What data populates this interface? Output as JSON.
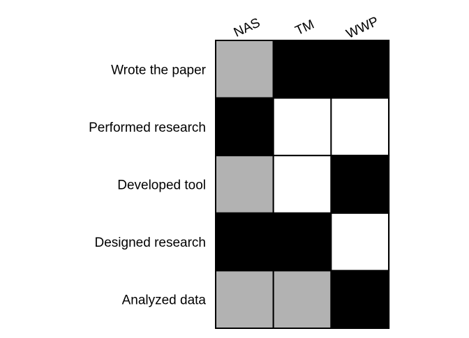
{
  "chart_data": {
    "type": "heatmap",
    "title": "",
    "xlabel": "",
    "ylabel": "",
    "columns": [
      "NAS",
      "TM",
      "WWP"
    ],
    "rows": [
      "Wrote the paper",
      "Performed research",
      "Developed tool",
      "Designed research",
      "Analyzed data"
    ],
    "values": [
      [
        0.5,
        1,
        1
      ],
      [
        1,
        0,
        0
      ],
      [
        0.5,
        0,
        1
      ],
      [
        1,
        1,
        0
      ],
      [
        0.5,
        0.5,
        1
      ]
    ],
    "colors": {
      "0": "#ffffff",
      "0.5": "#b2b2b2",
      "1": "#000000"
    },
    "grid": true,
    "legend": "none"
  }
}
